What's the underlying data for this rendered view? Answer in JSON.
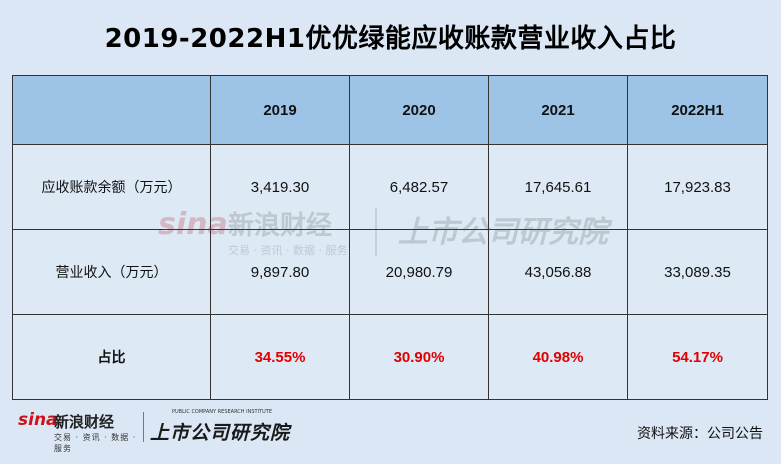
{
  "title": "2019-2022H1优优绿能应收账款营业收入占比",
  "table": {
    "columns": [
      "",
      "2019",
      "2020",
      "2021",
      "2022H1"
    ],
    "rows": [
      {
        "label": "应收账款余额（万元）",
        "values": [
          "3,419.30",
          "6,482.57",
          "17,645.61",
          "17,923.83"
        ]
      },
      {
        "label": "营业收入（万元）",
        "values": [
          "9,897.80",
          "20,980.79",
          "43,056.88",
          "33,089.35"
        ]
      },
      {
        "label": "占比",
        "values": [
          "34.55%",
          "30.90%",
          "40.98%",
          "54.17%"
        ]
      }
    ]
  },
  "watermark": {
    "sina_mark": "sina",
    "sina_cn": "新浪财经",
    "sina_sub": "交易 · 资讯 · 数据 · 服务",
    "inst_cn": "上市公司研究院"
  },
  "footer": {
    "sina_logo": {
      "mark": "sina",
      "cn": "新浪财经",
      "sub": "交易 · 资讯 · 数据 · 服务"
    },
    "inst_logo": {
      "en": "PUBLIC COMPANY RESEARCH INSTITUTE",
      "cn": "上市公司研究院"
    },
    "source": "资料来源：公司公告"
  },
  "colors": {
    "background": "#dbe7f4",
    "header_fill": "#9dc3e6",
    "body_fill": "#dde9f5",
    "ratio_text": "#e00000",
    "sina_red": "#d0111b"
  }
}
